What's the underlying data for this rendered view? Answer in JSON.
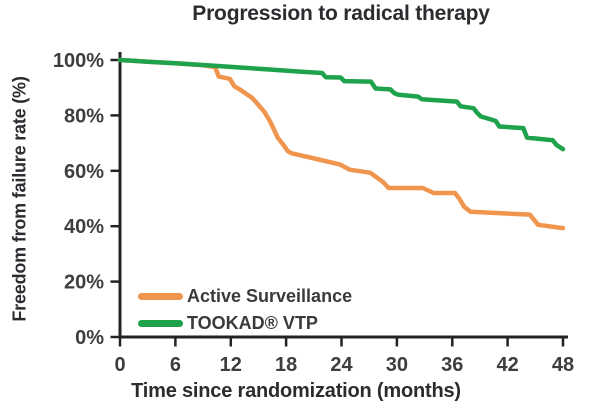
{
  "chart_data": {
    "type": "line",
    "subtype": "kaplan-meier-step-curves",
    "title": "Progression to radical therapy",
    "xlabel": "Time since randomization (months)",
    "ylabel": "Freedom from failure rate (%)",
    "xlim": [
      0,
      48
    ],
    "ylim": [
      0,
      100
    ],
    "xticks": [
      0,
      6,
      12,
      18,
      24,
      30,
      36,
      42,
      48
    ],
    "yticks": [
      0,
      20,
      40,
      60,
      80,
      100
    ],
    "ytick_suffix": "%",
    "grid": false,
    "legend_position": "inside lower-left",
    "axis_color": "#232323",
    "series": [
      {
        "name": "Active Surveillance",
        "color": "#F0954E",
        "points": [
          [
            0,
            100
          ],
          [
            3,
            99.4
          ],
          [
            6,
            98.8
          ],
          [
            9,
            98.1
          ],
          [
            10.3,
            97.4
          ],
          [
            10.7,
            94.0
          ],
          [
            11.9,
            93.2
          ],
          [
            12.4,
            90.5
          ],
          [
            13,
            89.3
          ],
          [
            14.3,
            86.4
          ],
          [
            15,
            83.8
          ],
          [
            15.7,
            81.0
          ],
          [
            16.3,
            77.6
          ],
          [
            16.7,
            74.8
          ],
          [
            17.1,
            71.9
          ],
          [
            17.7,
            69.4
          ],
          [
            18.2,
            67.0
          ],
          [
            18.6,
            66.3
          ],
          [
            20.6,
            64.8
          ],
          [
            23.8,
            62.3
          ],
          [
            24.9,
            60.4
          ],
          [
            27.1,
            59.3
          ],
          [
            28.5,
            56.0
          ],
          [
            29.1,
            53.8
          ],
          [
            32.8,
            53.8
          ],
          [
            34,
            52.0
          ],
          [
            36.3,
            52.0
          ],
          [
            36.8,
            49.8
          ],
          [
            37.3,
            47.0
          ],
          [
            38,
            45.2
          ],
          [
            44.4,
            44.2
          ],
          [
            45.3,
            40.5
          ],
          [
            48,
            39.3
          ]
        ]
      },
      {
        "name": "TOOKAD® VTP",
        "color": "#1FA24C",
        "points": [
          [
            0,
            100
          ],
          [
            3,
            99.4
          ],
          [
            6,
            98.8
          ],
          [
            9,
            98.2
          ],
          [
            12,
            97.5
          ],
          [
            16,
            96.6
          ],
          [
            19.5,
            95.8
          ],
          [
            21.9,
            95.3
          ],
          [
            22.3,
            93.8
          ],
          [
            23.9,
            93.7
          ],
          [
            24.3,
            92.4
          ],
          [
            27.2,
            92.2
          ],
          [
            27.7,
            89.7
          ],
          [
            29.3,
            89.4
          ],
          [
            29.7,
            88.1
          ],
          [
            30.1,
            87.5
          ],
          [
            32.3,
            86.8
          ],
          [
            32.7,
            85.8
          ],
          [
            36.5,
            85.0
          ],
          [
            36.9,
            83.3
          ],
          [
            38.3,
            82.6
          ],
          [
            38.7,
            80.9
          ],
          [
            39.1,
            79.6
          ],
          [
            40.7,
            78.0
          ],
          [
            41.1,
            76.0
          ],
          [
            43.7,
            75.4
          ],
          [
            44.1,
            72.0
          ],
          [
            46.9,
            71.0
          ],
          [
            47.3,
            69.3
          ],
          [
            48,
            67.8
          ]
        ]
      }
    ]
  }
}
